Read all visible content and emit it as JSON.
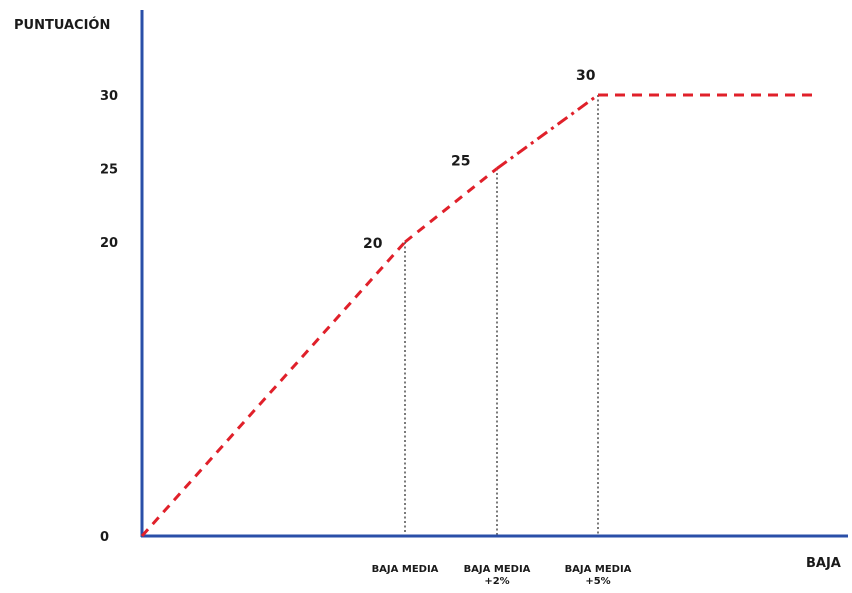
{
  "chart_data": {
    "type": "line",
    "ylabel": "PUNTUACIÓN",
    "xlabel": "BAJA",
    "yticks": [
      "0",
      "20",
      "25",
      "30"
    ],
    "ylim": [
      0,
      30
    ],
    "x_categories": [
      [
        "BAJA MEDIA"
      ],
      [
        "BAJA MEDIA",
        "+2%"
      ],
      [
        "BAJA MEDIA",
        "+5%"
      ]
    ],
    "points": [
      {
        "x": "0",
        "y": 0,
        "label": ""
      },
      {
        "x": "BAJA MEDIA",
        "y": 20,
        "label": "20"
      },
      {
        "x": "BAJA MEDIA +2%",
        "y": 25,
        "label": "25"
      },
      {
        "x": "BAJA MEDIA +5%",
        "y": 30,
        "label": "30"
      }
    ],
    "plateau_value": 30,
    "grid": false,
    "line_color": "#e0202a",
    "axis_color": "#2a4fa8",
    "guide_color": "#222222"
  }
}
